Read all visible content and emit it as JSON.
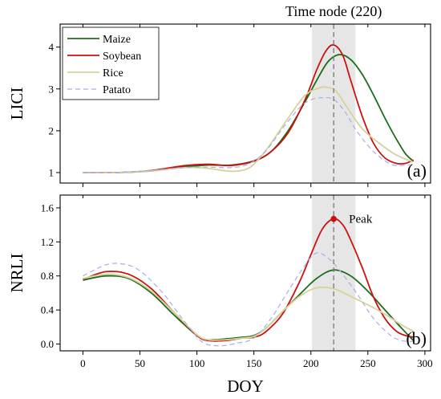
{
  "colors": {
    "maize": "#1a6e1a",
    "soybean": "#cc1111",
    "rice": "#d8d29a",
    "patato": "#a8aee6",
    "highlight": "#e6e6e6",
    "node_line": "#777777"
  },
  "annotation": {
    "time_node_label": "Time node (220)",
    "time_node_x": 220,
    "band": [
      201,
      239
    ]
  },
  "shared_x": {
    "label": "DOY",
    "lim": [
      -20,
      305
    ],
    "ticks": [
      0,
      50,
      100,
      150,
      200,
      250,
      300
    ]
  },
  "chart_data": [
    {
      "type": "line",
      "panel_label": "(a)",
      "ylabel": "LICI",
      "ylim": [
        0.75,
        4.55
      ],
      "yticks": [
        1,
        2,
        3,
        4
      ],
      "legend": {
        "placement": "top-left"
      },
      "series": [
        {
          "name": "Maize",
          "color_key": "maize",
          "style": "solid",
          "x": [
            0,
            30,
            60,
            90,
            110,
            130,
            150,
            165,
            180,
            195,
            205,
            215,
            225,
            235,
            245,
            255,
            265,
            275,
            283,
            290
          ],
          "y": [
            1.0,
            1.0,
            1.04,
            1.14,
            1.18,
            1.18,
            1.28,
            1.5,
            2.0,
            2.7,
            3.2,
            3.65,
            3.82,
            3.7,
            3.35,
            2.85,
            2.3,
            1.8,
            1.45,
            1.27
          ]
        },
        {
          "name": "Soybean",
          "color_key": "soybean",
          "style": "solid",
          "x": [
            0,
            30,
            60,
            90,
            110,
            130,
            150,
            165,
            180,
            195,
            205,
            213,
            220,
            228,
            235,
            245,
            255,
            265,
            275,
            283,
            290
          ],
          "y": [
            1.0,
            1.0,
            1.05,
            1.17,
            1.2,
            1.17,
            1.27,
            1.5,
            1.95,
            2.75,
            3.45,
            3.9,
            4.05,
            3.8,
            3.2,
            2.35,
            1.7,
            1.35,
            1.22,
            1.22,
            1.3
          ]
        },
        {
          "name": "Rice",
          "color_key": "rice",
          "style": "solid",
          "x": [
            0,
            30,
            60,
            90,
            110,
            130,
            145,
            155,
            165,
            180,
            195,
            208,
            215,
            222,
            232,
            245,
            260,
            275,
            290
          ],
          "y": [
            1.0,
            1.0,
            1.04,
            1.12,
            1.1,
            1.03,
            1.1,
            1.35,
            1.7,
            2.3,
            2.85,
            3.03,
            3.03,
            2.95,
            2.55,
            2.05,
            1.7,
            1.42,
            1.25
          ]
        },
        {
          "name": "Patato",
          "color_key": "patato",
          "style": "dashed",
          "x": [
            0,
            30,
            60,
            90,
            110,
            130,
            145,
            160,
            175,
            190,
            200,
            210,
            220,
            230,
            240,
            255,
            270,
            280,
            290
          ],
          "y": [
            1.0,
            1.0,
            1.05,
            1.12,
            1.13,
            1.12,
            1.2,
            1.5,
            2.05,
            2.55,
            2.74,
            2.79,
            2.75,
            2.45,
            2.0,
            1.5,
            1.2,
            1.17,
            1.2
          ]
        }
      ]
    },
    {
      "type": "line",
      "panel_label": "(b)",
      "ylabel": "NRLI",
      "ylim": [
        -0.08,
        1.75
      ],
      "yticks": [
        0.0,
        0.4,
        0.8,
        1.2,
        1.6
      ],
      "yticklabels": [
        "0.0",
        "0.4",
        "0.8",
        "1.2",
        "1.6"
      ],
      "annotations": [
        {
          "text": "Peak",
          "x": 220,
          "y": 1.47
        }
      ],
      "series": [
        {
          "name": "Maize",
          "color_key": "maize",
          "style": "solid",
          "x": [
            0,
            20,
            40,
            60,
            80,
            100,
            110,
            125,
            140,
            150,
            160,
            175,
            190,
            205,
            220,
            235,
            250,
            265,
            280,
            290
          ],
          "y": [
            0.75,
            0.8,
            0.77,
            0.6,
            0.34,
            0.1,
            0.05,
            0.06,
            0.08,
            0.1,
            0.18,
            0.38,
            0.58,
            0.77,
            0.87,
            0.8,
            0.62,
            0.4,
            0.18,
            0.04
          ]
        },
        {
          "name": "Soybean",
          "color_key": "soybean",
          "style": "solid",
          "x": [
            0,
            20,
            40,
            60,
            80,
            100,
            110,
            125,
            140,
            150,
            160,
            175,
            190,
            200,
            210,
            220,
            228,
            235,
            245,
            255,
            265,
            275,
            283,
            290
          ],
          "y": [
            0.76,
            0.85,
            0.82,
            0.65,
            0.37,
            0.1,
            0.04,
            0.04,
            0.07,
            0.08,
            0.14,
            0.35,
            0.73,
            1.05,
            1.35,
            1.47,
            1.4,
            1.22,
            0.9,
            0.55,
            0.3,
            0.15,
            0.1,
            0.08
          ]
        },
        {
          "name": "Rice",
          "color_key": "rice",
          "style": "solid",
          "x": [
            0,
            20,
            40,
            60,
            80,
            100,
            110,
            125,
            140,
            150,
            160,
            175,
            190,
            205,
            220,
            235,
            250,
            265,
            280,
            290
          ],
          "y": [
            0.77,
            0.82,
            0.78,
            0.62,
            0.37,
            0.11,
            0.05,
            0.05,
            0.07,
            0.09,
            0.18,
            0.38,
            0.56,
            0.66,
            0.65,
            0.56,
            0.46,
            0.35,
            0.22,
            0.15
          ]
        },
        {
          "name": "Patato",
          "color_key": "patato",
          "style": "dashed",
          "x": [
            0,
            20,
            35,
            50,
            70,
            90,
            105,
            120,
            135,
            150,
            165,
            180,
            195,
            205,
            215,
            225,
            240,
            255,
            270,
            280,
            290
          ],
          "y": [
            0.8,
            0.93,
            0.94,
            0.86,
            0.6,
            0.25,
            0.02,
            -0.02,
            0.01,
            0.07,
            0.3,
            0.62,
            0.93,
            1.07,
            1.01,
            0.87,
            0.6,
            0.3,
            0.1,
            0.04,
            0.03
          ]
        }
      ]
    }
  ]
}
